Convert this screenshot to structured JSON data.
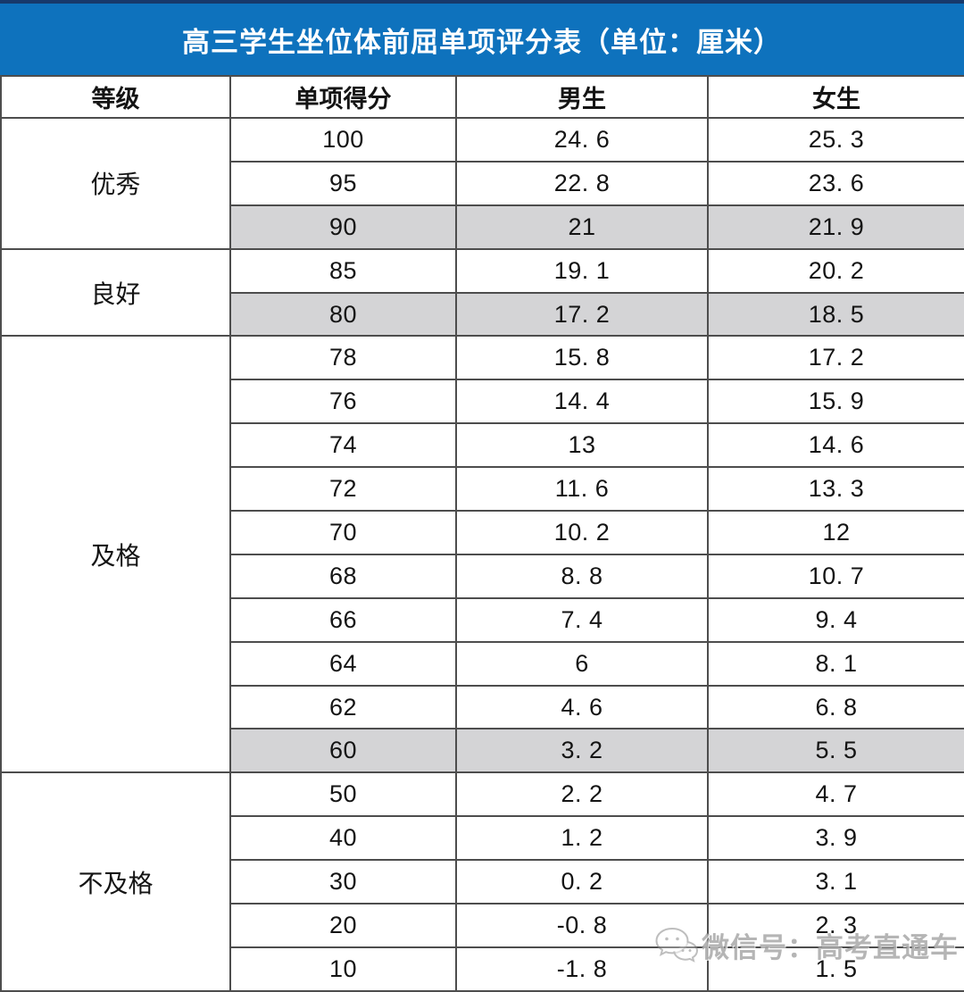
{
  "title": "高三学生坐位体前屈单项评分表（单位：厘米）",
  "table": {
    "headers": [
      "等级",
      "单项得分",
      "男生",
      "女生"
    ],
    "groups": [
      {
        "grade": "优秀",
        "rows": [
          {
            "score": "100",
            "male": "24.6",
            "female": "25.3",
            "shaded": false
          },
          {
            "score": "95",
            "male": "22.8",
            "female": "23.6",
            "shaded": false
          },
          {
            "score": "90",
            "male": "21",
            "female": "21.9",
            "shaded": true
          }
        ]
      },
      {
        "grade": "良好",
        "rows": [
          {
            "score": "85",
            "male": "19.1",
            "female": "20.2",
            "shaded": false
          },
          {
            "score": "80",
            "male": "17.2",
            "female": "18.5",
            "shaded": true
          }
        ]
      },
      {
        "grade": "及格",
        "rows": [
          {
            "score": "78",
            "male": "15.8",
            "female": "17.2",
            "shaded": false
          },
          {
            "score": "76",
            "male": "14.4",
            "female": "15.9",
            "shaded": false
          },
          {
            "score": "74",
            "male": "13",
            "female": "14.6",
            "shaded": false
          },
          {
            "score": "72",
            "male": "11.6",
            "female": "13.3",
            "shaded": false
          },
          {
            "score": "70",
            "male": "10.2",
            "female": "12",
            "shaded": false
          },
          {
            "score": "68",
            "male": "8.8",
            "female": "10.7",
            "shaded": false
          },
          {
            "score": "66",
            "male": "7.4",
            "female": "9.4",
            "shaded": false
          },
          {
            "score": "64",
            "male": "6",
            "female": "8.1",
            "shaded": false
          },
          {
            "score": "62",
            "male": "4.6",
            "female": "6.8",
            "shaded": false
          },
          {
            "score": "60",
            "male": "3.2",
            "female": "5.5",
            "shaded": true
          }
        ]
      },
      {
        "grade": "不及格",
        "rows": [
          {
            "score": "50",
            "male": "2.2",
            "female": "4.7",
            "shaded": false
          },
          {
            "score": "40",
            "male": "1.2",
            "female": "3.9",
            "shaded": false
          },
          {
            "score": "30",
            "male": "0.2",
            "female": "3.1",
            "shaded": false
          },
          {
            "score": "20",
            "male": "-0.8",
            "female": "2.3",
            "shaded": false
          },
          {
            "score": "10",
            "male": "-1.8",
            "female": "1.5",
            "shaded": false
          }
        ]
      }
    ]
  },
  "chart_data": {
    "type": "table",
    "title": "高三学生坐位体前屈单项评分表（单位：厘米）",
    "columns": [
      "等级",
      "单项得分",
      "男生",
      "女生"
    ],
    "rows": [
      [
        "优秀",
        100,
        24.6,
        25.3
      ],
      [
        "优秀",
        95,
        22.8,
        23.6
      ],
      [
        "优秀",
        90,
        21,
        21.9
      ],
      [
        "良好",
        85,
        19.1,
        20.2
      ],
      [
        "良好",
        80,
        17.2,
        18.5
      ],
      [
        "及格",
        78,
        15.8,
        17.2
      ],
      [
        "及格",
        76,
        14.4,
        15.9
      ],
      [
        "及格",
        74,
        13,
        14.6
      ],
      [
        "及格",
        72,
        11.6,
        13.3
      ],
      [
        "及格",
        70,
        10.2,
        12
      ],
      [
        "及格",
        68,
        8.8,
        10.7
      ],
      [
        "及格",
        66,
        7.4,
        9.4
      ],
      [
        "及格",
        64,
        6,
        8.1
      ],
      [
        "及格",
        62,
        4.6,
        6.8
      ],
      [
        "及格",
        60,
        3.2,
        5.5
      ],
      [
        "不及格",
        50,
        2.2,
        4.7
      ],
      [
        "不及格",
        40,
        1.2,
        3.9
      ],
      [
        "不及格",
        30,
        0.2,
        3.1
      ],
      [
        "不及格",
        20,
        -0.8,
        2.3
      ],
      [
        "不及格",
        10,
        -1.8,
        1.5
      ]
    ]
  },
  "watermark": {
    "text": "微信号：高考直通车"
  },
  "colors": {
    "banner_blue": "#0E72BD",
    "banner_top_line": "#17396B",
    "shaded_row": "#D4D4D6",
    "border": "#4D4D4D",
    "title_text": "#FFFFFF",
    "body_text": "#141414",
    "watermark_gray": "#878787"
  }
}
